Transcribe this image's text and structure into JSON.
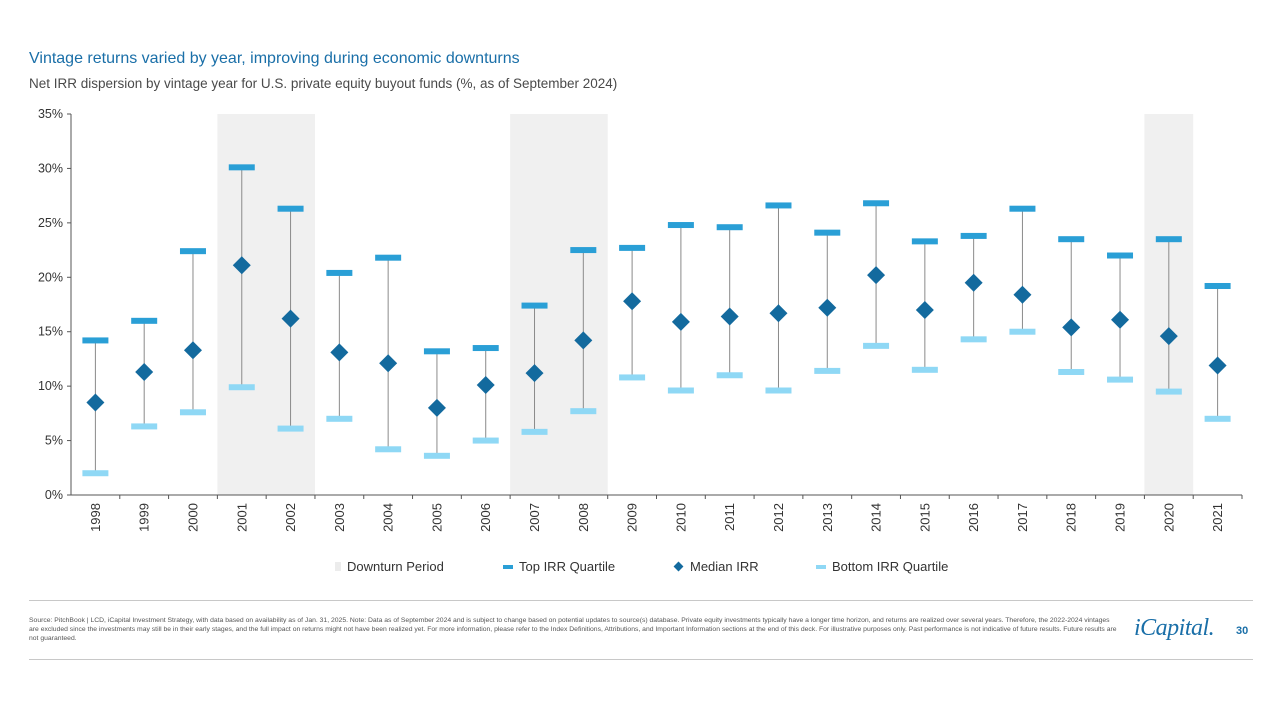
{
  "header": {
    "title": "Vintage returns varied by year, improving during economic downturns",
    "subtitle": "Net IRR dispersion by vintage year for U.S. private equity buyout funds (%, as of September 2024)"
  },
  "colors": {
    "top": "#2a9fd6",
    "median": "#136a9e",
    "bottom": "#8fd8f5",
    "downturn": "#f0f0f0",
    "whisker": "#8a8a8a",
    "title": "#1a6fa8"
  },
  "chart_data": {
    "type": "scatter",
    "title": "Vintage returns varied by year, improving during economic downturns",
    "xlabel": "",
    "ylabel": "",
    "ylim": [
      0,
      35
    ],
    "yticks": [
      0,
      5,
      10,
      15,
      20,
      25,
      30,
      35
    ],
    "ytick_labels": [
      "0%",
      "5%",
      "10%",
      "15%",
      "20%",
      "25%",
      "30%",
      "35%"
    ],
    "categories": [
      "1998",
      "1999",
      "2000",
      "2001",
      "2002",
      "2003",
      "2004",
      "2005",
      "2006",
      "2007",
      "2008",
      "2009",
      "2010",
      "2011",
      "2012",
      "2013",
      "2014",
      "2015",
      "2016",
      "2017",
      "2018",
      "2019",
      "2020",
      "2021"
    ],
    "downturn_periods": [
      [
        "2001",
        "2002"
      ],
      [
        "2007",
        "2008"
      ],
      [
        "2020",
        "2020"
      ]
    ],
    "series": [
      {
        "name": "Top IRR Quartile",
        "values": [
          14.2,
          16.0,
          22.4,
          30.1,
          26.3,
          20.4,
          21.8,
          13.2,
          13.5,
          17.4,
          22.5,
          22.7,
          24.8,
          24.6,
          26.6,
          24.1,
          26.8,
          23.3,
          23.8,
          26.3,
          23.5,
          22.0,
          23.5,
          19.2
        ]
      },
      {
        "name": "Median IRR",
        "values": [
          8.5,
          11.3,
          13.3,
          21.1,
          16.2,
          13.1,
          12.1,
          8.0,
          10.1,
          11.2,
          14.2,
          17.8,
          15.9,
          16.4,
          16.7,
          17.2,
          20.2,
          17.0,
          19.5,
          18.4,
          15.4,
          16.1,
          14.6,
          11.9
        ]
      },
      {
        "name": "Bottom IRR Quartile",
        "values": [
          2.0,
          6.3,
          7.6,
          9.9,
          6.1,
          7.0,
          4.2,
          3.6,
          5.0,
          5.8,
          7.7,
          10.8,
          9.6,
          11.0,
          9.6,
          11.4,
          13.7,
          11.5,
          14.3,
          15.0,
          11.3,
          10.6,
          9.5,
          7.0
        ]
      }
    ],
    "legend": [
      "Downturn Period",
      "Top IRR Quartile",
      "Median IRR",
      "Bottom IRR Quartile"
    ],
    "legend_position": "bottom"
  },
  "footer": {
    "source": "Source: PitchBook | LCD, iCapital Investment Strategy, with data based on availability as of Jan. 31, 2025. Note: Data as of September 2024 and is subject to change based on potential updates to source(s) database. Private equity investments typically have a longer time horizon, and returns are realized over several years. Therefore, the 2022-2024 vintages are excluded since the investments may still be in their early stages, and the full impact on returns might not have been realized yet. For more information, please refer to the Index Definitions, Attributions, and Important Information sections at the end of this deck. For illustrative purposes only. Past performance is not indicative of future results. Future results are not guaranteed.",
    "logo": "iCapital.",
    "page_number": "30"
  }
}
